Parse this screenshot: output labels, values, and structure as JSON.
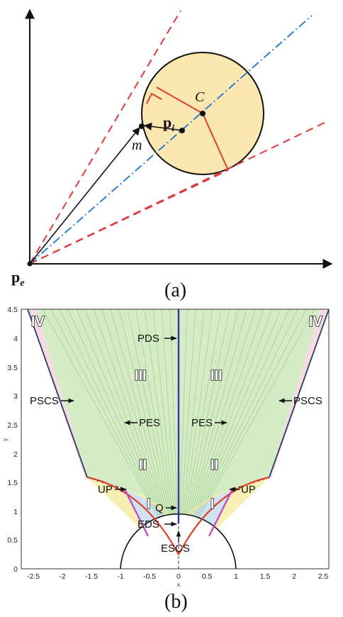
{
  "panel_a": {
    "point_labels": {
      "center": "C",
      "pi_main": "p",
      "pi_sub": "i",
      "m": "m",
      "pe_main": "p",
      "pe_sub": "e"
    },
    "caption": "(a)",
    "colors": {
      "circle_fill": "#fbe7b0",
      "tangent": "#e03a3a",
      "axis_line": "#2f7fd0",
      "radius": "#e03a3a"
    }
  },
  "panel_b": {
    "caption": "(b)",
    "x_ticks": [
      "-2.5",
      "-2",
      "-1.5",
      "-1",
      "-0.5",
      "0",
      "0.5",
      "1",
      "1.5",
      "2",
      "2.5"
    ],
    "y_ticks": [
      "0",
      "0.5",
      "1",
      "1.5",
      "2",
      "2.5",
      "3",
      "3.5",
      "4",
      "4.5"
    ],
    "xlabel": "x",
    "ylabel": "y",
    "regions": {
      "r1": "I",
      "r2": "II",
      "r3": "III",
      "r4": "IV"
    },
    "tags": {
      "pds": "PDS",
      "pscs_left": "PSCS",
      "pscs_right": "PSCS",
      "pes_left": "PES",
      "pes_right": "PES",
      "up_left": "UP",
      "up_right": "UP",
      "q": "Q",
      "eds": "EDS",
      "escs": "ESCS"
    },
    "colors": {
      "region_I": "#cfe3f5",
      "region_II": "#f7efb4",
      "region_III": "#d4ebc6",
      "region_IV": "#f7dbe3",
      "pds_line": "#2b3fa0",
      "pes_curve": "#e0402c",
      "up_line": "#c040c0",
      "pscs_line": "#2a3a6a",
      "eds_fill": "#f5c518"
    }
  }
}
